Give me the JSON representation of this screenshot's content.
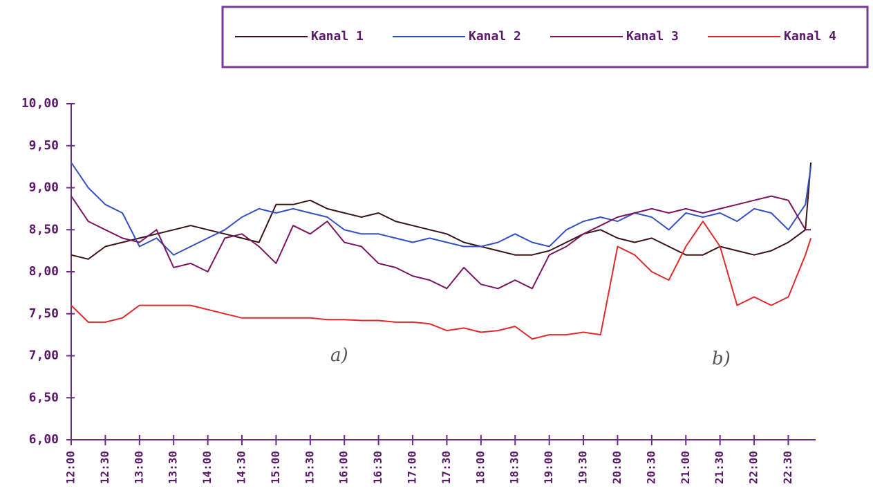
{
  "chart_data": {
    "type": "line",
    "legend_position": "top-right",
    "annotations": [
      "a)",
      "b)"
    ],
    "x": [
      12,
      12.25,
      12.5,
      12.75,
      13,
      13.25,
      13.5,
      13.75,
      14,
      14.25,
      14.5,
      14.75,
      15,
      15.25,
      15.5,
      15.75,
      16,
      16.25,
      16.5,
      16.75,
      17,
      17.25,
      17.5,
      17.75,
      18,
      18.25,
      18.5,
      18.75,
      19,
      19.25,
      19.5,
      19.75,
      20,
      20.25,
      20.5,
      20.75,
      21,
      21.25,
      21.5,
      21.75,
      22,
      22.25,
      22.5,
      22.75,
      22.83
    ],
    "series": [
      {
        "name": "Kanal 1",
        "color": "#3a1414",
        "values": [
          8.2,
          8.15,
          8.3,
          8.35,
          8.4,
          8.45,
          8.5,
          8.55,
          8.5,
          8.45,
          8.4,
          8.35,
          8.8,
          8.8,
          8.85,
          8.75,
          8.7,
          8.65,
          8.7,
          8.6,
          8.55,
          8.5,
          8.45,
          8.35,
          8.3,
          8.25,
          8.2,
          8.2,
          8.25,
          8.35,
          8.45,
          8.5,
          8.4,
          8.35,
          8.4,
          8.3,
          8.2,
          8.2,
          8.3,
          8.25,
          8.2,
          8.25,
          8.35,
          8.5,
          9.3
        ]
      },
      {
        "name": "Kanal 2",
        "color": "#3350c0",
        "values": [
          9.3,
          9.0,
          8.8,
          8.7,
          8.3,
          8.4,
          8.2,
          8.3,
          8.4,
          8.5,
          8.65,
          8.75,
          8.7,
          8.75,
          8.7,
          8.65,
          8.5,
          8.45,
          8.45,
          8.4,
          8.35,
          8.4,
          8.35,
          8.3,
          8.3,
          8.35,
          8.45,
          8.35,
          8.3,
          8.5,
          8.6,
          8.65,
          8.6,
          8.7,
          8.65,
          8.5,
          8.7,
          8.65,
          8.7,
          8.6,
          8.75,
          8.7,
          8.5,
          8.8,
          9.25
        ]
      },
      {
        "name": "Kanal 3",
        "color": "#7a1560",
        "values": [
          8.9,
          8.6,
          8.5,
          8.4,
          8.35,
          8.5,
          8.05,
          8.1,
          8.0,
          8.4,
          8.45,
          8.3,
          8.1,
          8.55,
          8.45,
          8.6,
          8.35,
          8.3,
          8.1,
          8.05,
          7.95,
          7.9,
          7.8,
          8.05,
          7.85,
          7.8,
          7.9,
          7.8,
          8.2,
          8.3,
          8.45,
          8.55,
          8.65,
          8.7,
          8.75,
          8.7,
          8.75,
          8.7,
          8.75,
          8.8,
          8.85,
          8.9,
          8.85,
          8.5,
          8.5
        ]
      },
      {
        "name": "Kanal 4",
        "color": "#e02a2a",
        "values": [
          7.6,
          7.4,
          7.4,
          7.45,
          7.6,
          7.6,
          7.6,
          7.6,
          7.55,
          7.5,
          7.45,
          7.45,
          7.45,
          7.45,
          7.45,
          7.43,
          7.43,
          7.42,
          7.42,
          7.4,
          7.4,
          7.38,
          7.3,
          7.33,
          7.28,
          7.3,
          7.35,
          7.2,
          7.25,
          7.25,
          7.28,
          7.25,
          8.3,
          8.2,
          8.0,
          7.9,
          8.3,
          8.6,
          8.3,
          7.6,
          7.7,
          7.6,
          7.7,
          8.2,
          8.4
        ]
      }
    ],
    "xlim": [
      12,
      22.9
    ],
    "xticks": [
      {
        "value": 12,
        "label": "12:00"
      },
      {
        "value": 12.5,
        "label": "12:30"
      },
      {
        "value": 13,
        "label": "13:00"
      },
      {
        "value": 13.5,
        "label": "13:30"
      },
      {
        "value": 14,
        "label": "14:00"
      },
      {
        "value": 14.5,
        "label": "14:30"
      },
      {
        "value": 15,
        "label": "15:00"
      },
      {
        "value": 15.5,
        "label": "15:30"
      },
      {
        "value": 16,
        "label": "16:00"
      },
      {
        "value": 16.5,
        "label": "16:30"
      },
      {
        "value": 17,
        "label": "17:00"
      },
      {
        "value": 17.5,
        "label": "17:30"
      },
      {
        "value": 18,
        "label": "18:00"
      },
      {
        "value": 18.5,
        "label": "18:30"
      },
      {
        "value": 19,
        "label": "19:00"
      },
      {
        "value": 19.5,
        "label": "19:30"
      },
      {
        "value": 20,
        "label": "20:00"
      },
      {
        "value": 20.5,
        "label": "20:30"
      },
      {
        "value": 21,
        "label": "21:00"
      },
      {
        "value": 21.5,
        "label": "21:30"
      },
      {
        "value": 22,
        "label": "22:00"
      },
      {
        "value": 22.5,
        "label": "22:30"
      }
    ],
    "ylim": [
      6,
      10
    ],
    "yticks": [
      {
        "value": 6,
        "label": "6,00"
      },
      {
        "value": 6.5,
        "label": "6,50"
      },
      {
        "value": 7,
        "label": "7,00"
      },
      {
        "value": 7.5,
        "label": "7,50"
      },
      {
        "value": 8,
        "label": "8,00"
      },
      {
        "value": 8.5,
        "label": "8,50"
      },
      {
        "value": 9,
        "label": "9,00"
      },
      {
        "value": 9.5,
        "label": "9,50"
      },
      {
        "value": 10,
        "label": "10,00"
      }
    ],
    "grid": false,
    "axis_color": "#6a2a8a"
  }
}
